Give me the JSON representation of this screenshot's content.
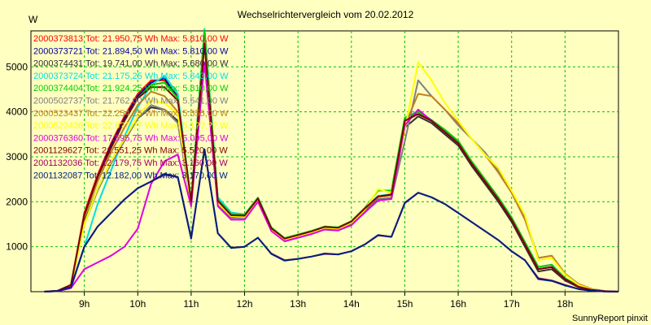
{
  "chart_data": {
    "type": "line",
    "title": "Wechselrichtervergleich vom 20.02.2012",
    "ylabel": "W",
    "xlabel": "",
    "xlim": [
      8.0,
      19.0
    ],
    "ylim": [
      0,
      5800
    ],
    "y_ticks": [
      1000,
      2000,
      3000,
      4000,
      5000
    ],
    "x_ticks": [
      {
        "value": 9,
        "label": "9h"
      },
      {
        "value": 10,
        "label": "10h"
      },
      {
        "value": 11,
        "label": "11h"
      },
      {
        "value": 12,
        "label": "12h"
      },
      {
        "value": 13,
        "label": "13h"
      },
      {
        "value": 14,
        "label": "14h"
      },
      {
        "value": 15,
        "label": "15h"
      },
      {
        "value": 16,
        "label": "16h"
      },
      {
        "value": 17,
        "label": "17h"
      },
      {
        "value": 18,
        "label": "18h"
      }
    ],
    "grid": true,
    "x": [
      8.25,
      8.5,
      8.75,
      9.0,
      9.25,
      9.5,
      9.75,
      10.0,
      10.25,
      10.5,
      10.75,
      11.0,
      11.25,
      11.5,
      11.75,
      12.0,
      12.25,
      12.5,
      12.75,
      13.0,
      13.25,
      13.5,
      13.75,
      14.0,
      14.25,
      14.5,
      14.75,
      15.0,
      15.25,
      15.5,
      15.75,
      16.0,
      16.25,
      16.5,
      16.75,
      17.0,
      17.25,
      17.5,
      17.75,
      18.0,
      18.25,
      18.5,
      18.75,
      19.0
    ],
    "series": [
      {
        "name": "2000373813",
        "legend": "2000373813 Tot: 21.950,75 Wh Max: 5.810,00 W",
        "color": "#ff0000",
        "values": [
          0,
          20,
          150,
          1750,
          2600,
          3300,
          3900,
          4400,
          4700,
          4700,
          4350,
          2000,
          5800,
          2050,
          1720,
          1700,
          2080,
          1420,
          1180,
          1260,
          1340,
          1440,
          1420,
          1560,
          1850,
          2120,
          2160,
          3850,
          4000,
          3800,
          3600,
          3350,
          2900,
          2500,
          2100,
          1650,
          1100,
          550,
          600,
          300,
          120,
          40,
          10,
          0
        ]
      },
      {
        "name": "2000373721",
        "legend": "2000373721 Tot: 21.894,50 Wh Max: 5.810,00 W",
        "color": "#0000a0",
        "values": [
          0,
          20,
          150,
          1700,
          2550,
          3250,
          3850,
          4350,
          4650,
          4750,
          4300,
          2000,
          5800,
          2050,
          1720,
          1700,
          2080,
          1420,
          1180,
          1260,
          1340,
          1440,
          1420,
          1560,
          1850,
          2120,
          2160,
          3850,
          3950,
          3800,
          3550,
          3300,
          2850,
          2450,
          2050,
          1600,
          1050,
          500,
          550,
          280,
          110,
          40,
          10,
          0
        ]
      },
      {
        "name": "2000374431",
        "legend": "2000374431 Tot: 19.741,00 Wh Max: 5.680,00 W",
        "color": "#303030",
        "values": [
          0,
          20,
          120,
          1550,
          2300,
          2900,
          3400,
          3850,
          4100,
          4050,
          3800,
          1950,
          5680,
          1950,
          1650,
          1650,
          2020,
          1380,
          1150,
          1230,
          1300,
          1400,
          1380,
          1500,
          1780,
          2050,
          2080,
          3650,
          3900,
          3750,
          3500,
          3250,
          2800,
          2400,
          2000,
          1550,
          1000,
          450,
          500,
          250,
          100,
          30,
          10,
          0
        ]
      },
      {
        "name": "2000373724",
        "legend": "2000373724 Tot: 21.175,25 Wh Max: 5.843,00 W",
        "color": "#00e0e0",
        "values": [
          0,
          10,
          80,
          1000,
          1950,
          2700,
          3450,
          4100,
          4600,
          4800,
          4400,
          2000,
          5843,
          2100,
          1760,
          1720,
          2090,
          1430,
          1190,
          1270,
          1350,
          1450,
          1430,
          1570,
          1860,
          2130,
          2170,
          3860,
          4020,
          3820,
          3600,
          3350,
          2900,
          2500,
          2100,
          1650,
          1100,
          550,
          600,
          300,
          120,
          40,
          10,
          0
        ]
      },
      {
        "name": "2000374404",
        "legend": "2000374404 Tot: 21.924,25 Wh Max: 5.810,00 W",
        "color": "#00d000",
        "values": [
          0,
          20,
          150,
          1700,
          2550,
          3200,
          3800,
          4300,
          4600,
          4650,
          4300,
          2000,
          5810,
          2050,
          1730,
          1710,
          2090,
          1430,
          1190,
          1270,
          1350,
          1450,
          1430,
          1570,
          1860,
          2250,
          2250,
          3870,
          4000,
          3810,
          3600,
          3350,
          2900,
          2500,
          2100,
          1650,
          1100,
          550,
          600,
          300,
          120,
          40,
          10,
          0
        ]
      },
      {
        "name": "2000502737",
        "legend": "2000502737 Tot: 21.762,00 Wh Max: 5.541,00 W",
        "color": "#808080",
        "values": [
          0,
          15,
          120,
          1500,
          2250,
          2850,
          3350,
          3850,
          4150,
          4050,
          3750,
          1950,
          5541,
          1950,
          1640,
          1640,
          2000,
          1370,
          1140,
          1220,
          1290,
          1390,
          1370,
          1480,
          1770,
          2040,
          2070,
          3350,
          4700,
          4350,
          4050,
          3700,
          3400,
          3100,
          2700,
          2200,
          1650,
          750,
          800,
          400,
          170,
          60,
          15,
          0
        ]
      },
      {
        "name": "2000523437",
        "legend": "2000523437 Tot: 22.254,25 Wh Max: 5.555,00 W",
        "color": "#c08020",
        "values": [
          0,
          20,
          150,
          1650,
          2450,
          3100,
          3650,
          4150,
          4450,
          4350,
          4000,
          1950,
          5555,
          2000,
          1700,
          1680,
          2060,
          1400,
          1170,
          1250,
          1330,
          1430,
          1410,
          1540,
          1830,
          2100,
          2140,
          3700,
          4400,
          4350,
          4050,
          3750,
          3400,
          3050,
          2650,
          2200,
          1600,
          750,
          800,
          400,
          170,
          60,
          15,
          0
        ]
      },
      {
        "name": "2000523436",
        "legend": "2000523436 Tot: 22.6??,?? Wh Max: 5.1??,?? W",
        "color": "#ffff00",
        "values": [
          0,
          15,
          120,
          1500,
          2300,
          2900,
          3400,
          3900,
          4250,
          4200,
          3950,
          1950,
          5100,
          1970,
          1680,
          1660,
          2040,
          1390,
          1160,
          1240,
          1320,
          1420,
          1400,
          1530,
          1820,
          2280,
          2200,
          3600,
          5100,
          4700,
          4200,
          3800,
          3400,
          3050,
          2750,
          2250,
          1700,
          700,
          750,
          380,
          150,
          50,
          15,
          0
        ]
      },
      {
        "name": "2000376360",
        "legend": "2000376360 Tot: 17.595,75 Wh Max: 5.095,00 W",
        "color": "#e000e0",
        "values": [
          0,
          10,
          80,
          500,
          650,
          800,
          1000,
          1400,
          2400,
          2900,
          3050,
          1900,
          5095,
          1900,
          1600,
          1600,
          2000,
          1350,
          1120,
          1200,
          1280,
          1380,
          1360,
          1480,
          1760,
          2030,
          2060,
          3700,
          4050,
          3800,
          3550,
          3300,
          2850,
          2450,
          2050,
          1600,
          1050,
          500,
          550,
          280,
          110,
          40,
          10,
          0
        ]
      },
      {
        "name": "2001129627",
        "legend": "2001129627 Tot: 21.551,25 Wh Max: 5.520,00 W",
        "color": "#800000",
        "values": [
          0,
          20,
          150,
          1700,
          2550,
          3200,
          3800,
          4300,
          4550,
          4550,
          4250,
          2000,
          5520,
          2020,
          1700,
          1690,
          2070,
          1410,
          1180,
          1260,
          1340,
          1440,
          1420,
          1560,
          1850,
          2120,
          2160,
          3800,
          3950,
          3800,
          3550,
          3300,
          2850,
          2450,
          2050,
          1600,
          1050,
          500,
          550,
          280,
          110,
          40,
          10,
          0
        ]
      },
      {
        "name": "2001132036",
        "legend": "2001132036 Tot: 12.179,75 Wh Max: 3.160,00 W",
        "color": "#a00060",
        "values": [
          0,
          15,
          100,
          1000,
          1450,
          1750,
          2050,
          2300,
          2450,
          2600,
          2550,
          1200,
          3160,
          1300,
          980,
          1000,
          1200,
          850,
          700,
          730,
          780,
          840,
          830,
          900,
          1050,
          1250,
          1220,
          1980,
          2200,
          2100,
          1950,
          1750,
          1550,
          1350,
          1150,
          900,
          700,
          300,
          250,
          150,
          60,
          20,
          5,
          0
        ]
      },
      {
        "name": "2001132087",
        "legend": "2001132087 Tot: 12.182,00 Wh Max: 3.170,00 W",
        "color": "#002080",
        "values": [
          0,
          15,
          100,
          1000,
          1450,
          1750,
          2050,
          2300,
          2450,
          2620,
          2550,
          1180,
          3170,
          1300,
          970,
          1000,
          1200,
          840,
          690,
          730,
          780,
          850,
          830,
          900,
          1050,
          1260,
          1220,
          1970,
          2200,
          2100,
          1950,
          1750,
          1550,
          1350,
          1150,
          900,
          700,
          280,
          240,
          140,
          60,
          20,
          5,
          0
        ]
      }
    ]
  },
  "footer": "SunnyReport pinxit"
}
